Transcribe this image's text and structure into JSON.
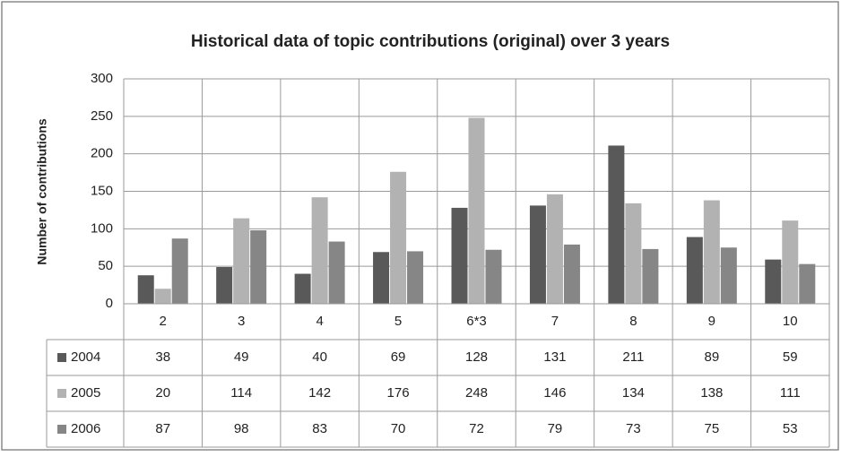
{
  "chart_data": {
    "type": "bar",
    "title": "Historical data of topic contributions (original) over 3 years",
    "y_label": "Number of contributions",
    "categories": [
      "2",
      "3",
      "4",
      "5",
      "6*3",
      "7",
      "8",
      "9",
      "10"
    ],
    "series": [
      {
        "name": "2004",
        "color": "#595959",
        "values": [
          38,
          49,
          40,
          69,
          128,
          131,
          211,
          89,
          59
        ]
      },
      {
        "name": "2005",
        "color": "#b2b2b2",
        "values": [
          20,
          114,
          142,
          176,
          248,
          146,
          134,
          138,
          111
        ]
      },
      {
        "name": "2006",
        "color": "#868686",
        "values": [
          87,
          98,
          83,
          70,
          72,
          79,
          73,
          75,
          53
        ]
      }
    ],
    "ylim": [
      0,
      300
    ],
    "yticks": [
      0,
      50,
      100,
      150,
      200,
      250,
      300
    ],
    "grid": true,
    "data_table": true
  }
}
